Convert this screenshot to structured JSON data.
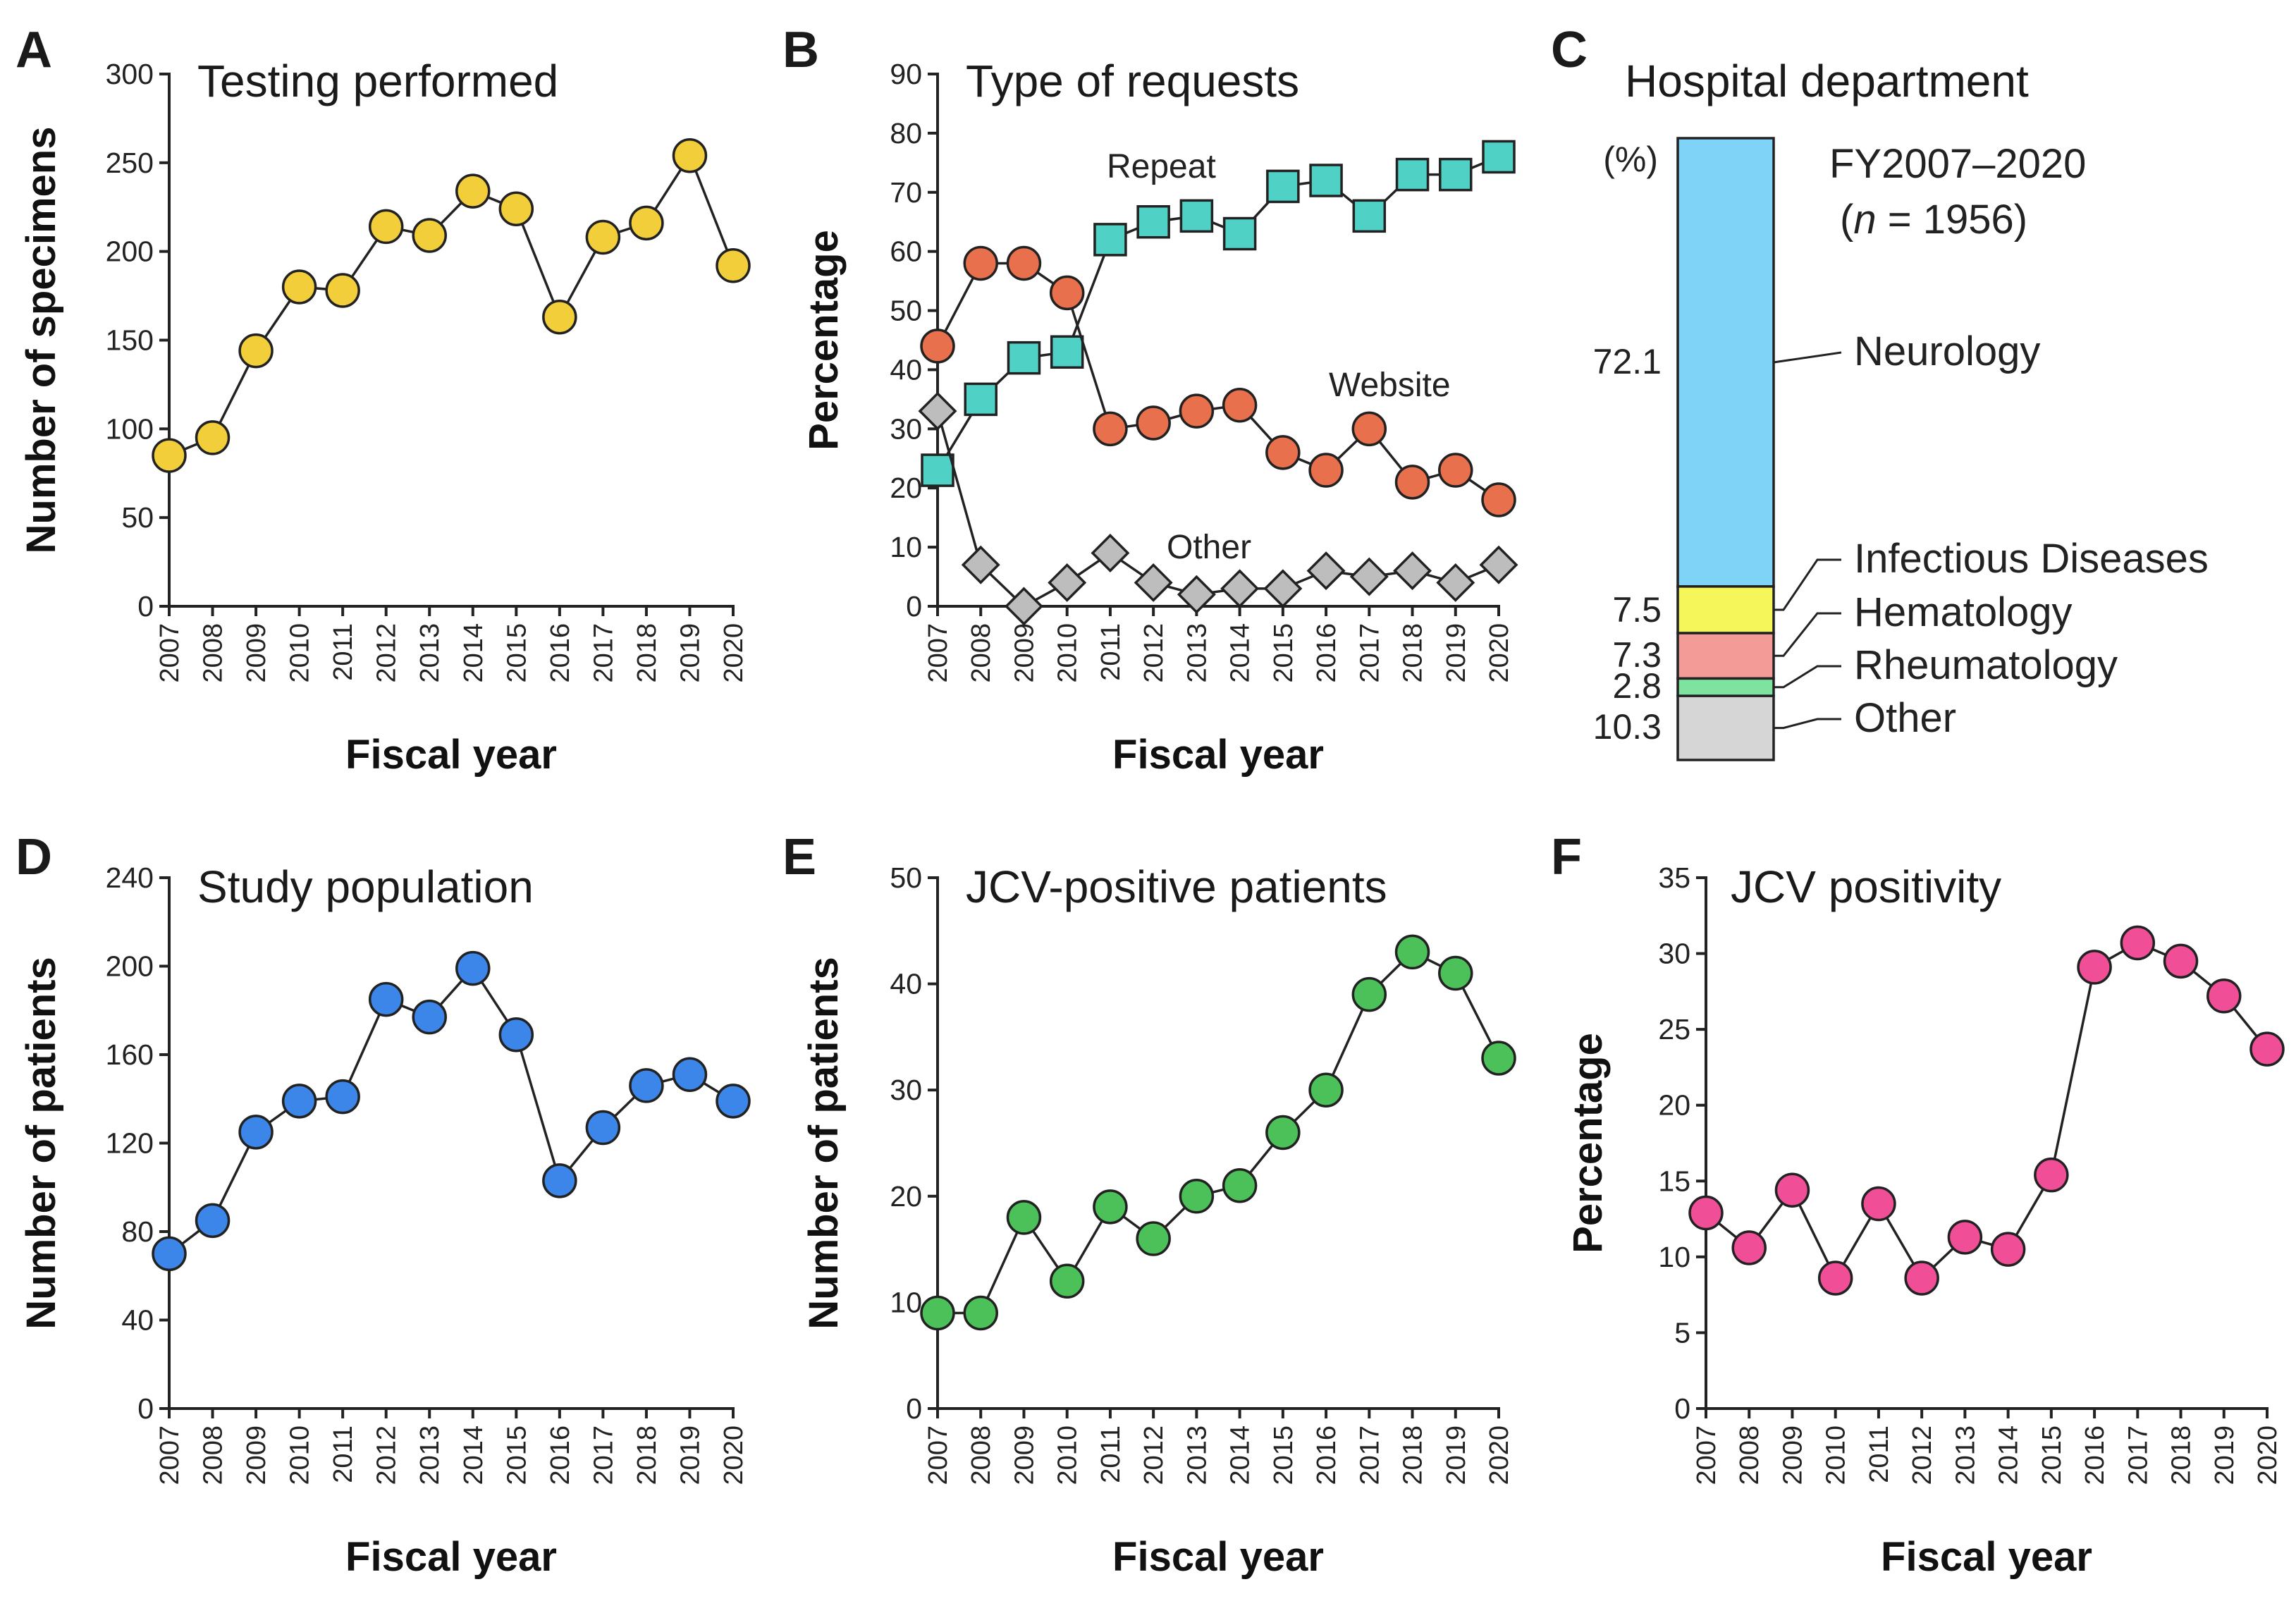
{
  "chart_data": [
    {
      "id": "A",
      "letter": "A",
      "type": "line",
      "title": "Testing performed",
      "xlabel": "Fiscal year",
      "ylabel": "Number of specimens",
      "categories": [
        "2007",
        "2008",
        "2009",
        "2010",
        "2011",
        "2012",
        "2013",
        "2014",
        "2015",
        "2016",
        "2017",
        "2018",
        "2019",
        "2020"
      ],
      "ylim": [
        0,
        300
      ],
      "yticks": [
        0,
        50,
        100,
        150,
        200,
        250,
        300
      ],
      "series": [
        {
          "name": "Specimens",
          "marker": "circle",
          "color": "#f2cf3a",
          "values": [
            85,
            95,
            144,
            180,
            178,
            214,
            209,
            234,
            224,
            163,
            208,
            216,
            254,
            192
          ]
        }
      ]
    },
    {
      "id": "B",
      "letter": "B",
      "type": "line",
      "title": "Type of requests",
      "xlabel": "Fiscal year",
      "ylabel": "Percentage",
      "categories": [
        "2007",
        "2008",
        "2009",
        "2010",
        "2011",
        "2012",
        "2013",
        "2014",
        "2015",
        "2016",
        "2017",
        "2018",
        "2019",
        "2020"
      ],
      "ylim": [
        0,
        90
      ],
      "yticks": [
        0,
        10,
        20,
        30,
        40,
        50,
        60,
        70,
        80,
        90
      ],
      "series": [
        {
          "name": "Repeat",
          "marker": "square",
          "color": "#4fd1c5",
          "values": [
            23,
            35,
            42,
            43,
            62,
            65,
            66,
            63,
            71,
            72,
            66,
            73,
            73,
            76
          ]
        },
        {
          "name": "Website",
          "marker": "circle",
          "color": "#e8704c",
          "values": [
            44,
            58,
            58,
            53,
            30,
            31,
            33,
            34,
            26,
            23,
            30,
            21,
            23,
            18
          ]
        },
        {
          "name": "Other",
          "marker": "diamond",
          "color": "#bdbdbd",
          "values": [
            33,
            7,
            0,
            4,
            9,
            4,
            2,
            3,
            3,
            6,
            5,
            6,
            4,
            7
          ]
        }
      ]
    },
    {
      "id": "C",
      "letter": "C",
      "type": "bar",
      "title": "Hospital department",
      "unit_label": "(%)",
      "note_line1": "FY2007–2020",
      "note_n_letter": "n",
      "note_n_rest": " = 1956)",
      "note_open_paren": "(",
      "segments": [
        {
          "name": "Neurology",
          "value": 72.1,
          "color": "#7fd3f7",
          "value_label": "72.1"
        },
        {
          "name": "Infectious Diseases",
          "value": 7.5,
          "color": "#f4f65a",
          "value_label": "7.5"
        },
        {
          "name": "Hematology",
          "value": 7.3,
          "color": "#f29b97",
          "value_label": "7.3"
        },
        {
          "name": "Rheumatology",
          "value": 2.8,
          "color": "#7fe3a0",
          "value_label": "2.8"
        },
        {
          "name": "Other",
          "value": 10.3,
          "color": "#d6d6d6",
          "value_label": "10.3"
        }
      ]
    },
    {
      "id": "D",
      "letter": "D",
      "type": "line",
      "title": "Study population",
      "xlabel": "Fiscal year",
      "ylabel": "Number of patients",
      "categories": [
        "2007",
        "2008",
        "2009",
        "2010",
        "2011",
        "2012",
        "2013",
        "2014",
        "2015",
        "2016",
        "2017",
        "2018",
        "2019",
        "2020"
      ],
      "ylim": [
        0,
        240
      ],
      "yticks": [
        0,
        40,
        80,
        120,
        160,
        200,
        240
      ],
      "series": [
        {
          "name": "Patients",
          "marker": "circle",
          "color": "#3b86e8",
          "values": [
            70,
            85,
            125,
            139,
            141,
            185,
            177,
            199,
            169,
            103,
            127,
            146,
            151,
            139
          ]
        }
      ]
    },
    {
      "id": "E",
      "letter": "E",
      "type": "line",
      "title": "JCV-positive patients",
      "xlabel": "Fiscal year",
      "ylabel": "Number of patients",
      "categories": [
        "2007",
        "2008",
        "2009",
        "2010",
        "2011",
        "2012",
        "2013",
        "2014",
        "2015",
        "2016",
        "2017",
        "2018",
        "2019",
        "2020"
      ],
      "ylim": [
        0,
        50
      ],
      "yticks": [
        0,
        10,
        20,
        30,
        40,
        50
      ],
      "series": [
        {
          "name": "JCV-positive",
          "marker": "circle",
          "color": "#4cc15a",
          "values": [
            9,
            9,
            18,
            12,
            19,
            16,
            20,
            21,
            26,
            30,
            39,
            43,
            41,
            33
          ]
        }
      ]
    },
    {
      "id": "F",
      "letter": "F",
      "type": "line",
      "title": "JCV positivity",
      "xlabel": "Fiscal year",
      "ylabel": "Percentage",
      "categories": [
        "2007",
        "2008",
        "2009",
        "2010",
        "2011",
        "2012",
        "2013",
        "2014",
        "2015",
        "2016",
        "2017",
        "2018",
        "2019",
        "2020"
      ],
      "ylim": [
        0,
        35
      ],
      "yticks": [
        0,
        5,
        10,
        15,
        20,
        25,
        30,
        35
      ],
      "series": [
        {
          "name": "Positivity",
          "marker": "circle",
          "color": "#f04f98",
          "values": [
            12.9,
            10.6,
            14.4,
            8.6,
            13.5,
            8.6,
            11.3,
            10.5,
            15.4,
            29.1,
            30.7,
            29.5,
            27.2,
            23.7
          ]
        }
      ]
    }
  ]
}
